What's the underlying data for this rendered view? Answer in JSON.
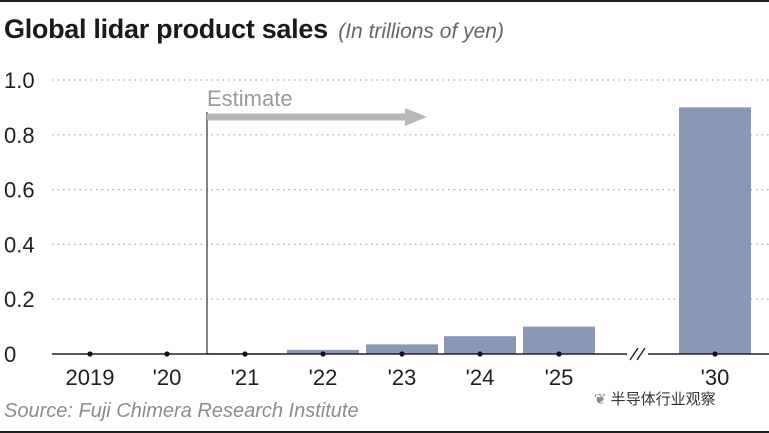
{
  "header": {
    "title": "Global lidar product sales",
    "subtitle": "(In trillions of yen)"
  },
  "footer": {
    "source": "Source: Fuji Chimera Research Institute",
    "watermark": "半导体行业观察",
    "watermark_icon": "wechat-logo-icon"
  },
  "colors": {
    "bar": "#8a97b5",
    "estimate_arrow": "#b8b8b8",
    "gridline": "#a8a8a8",
    "axis": "#222222"
  },
  "chart_data": {
    "type": "bar",
    "title": "Global lidar product sales",
    "subtitle": "(In trillions of yen)",
    "categories": [
      "2019",
      "'20",
      "'21",
      "'22",
      "'23",
      "'24",
      "'25",
      "'30"
    ],
    "values": [
      0,
      0,
      0.003,
      0.015,
      0.035,
      0.065,
      0.1,
      0.9
    ],
    "ylim": [
      0,
      1.0
    ],
    "yticks": [
      "0",
      "0.2",
      "0.4",
      "0.6",
      "0.8",
      "1.0"
    ],
    "ytick_values": [
      0,
      0.2,
      0.4,
      0.6,
      0.8,
      1.0
    ],
    "xlabel": "",
    "ylabel": "",
    "grid": "horizontal dotted",
    "axis_break_after": "'25",
    "annotation": {
      "text": "Estimate",
      "starts_at": "'21",
      "style": "arrow pointing right"
    }
  }
}
